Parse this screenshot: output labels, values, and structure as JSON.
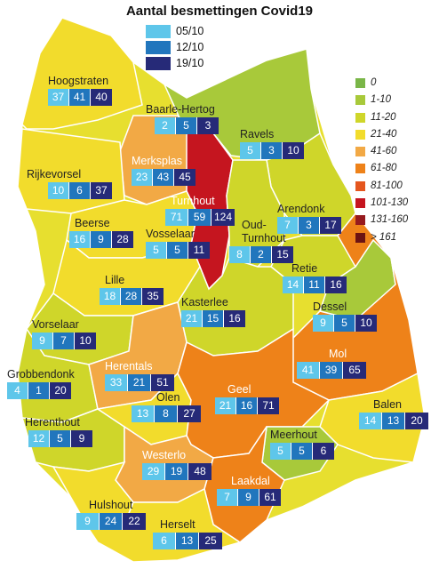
{
  "title": "Aantal besmettingen Covid19",
  "key": [
    {
      "label": "05/10",
      "color": "#5ec6ea"
    },
    {
      "label": "12/10",
      "color": "#2176bd"
    },
    {
      "label": "19/10",
      "color": "#262a78"
    }
  ],
  "scale": [
    {
      "label": "0",
      "color": "#7ab648"
    },
    {
      "label": "1-10",
      "color": "#a8c93a"
    },
    {
      "label": "11-20",
      "color": "#cfd62a"
    },
    {
      "label": "21-40",
      "color": "#f2dc2c"
    },
    {
      "label": "41-60",
      "color": "#f2a945"
    },
    {
      "label": "61-80",
      "color": "#ee8219"
    },
    {
      "label": "81-100",
      "color": "#e5561e"
    },
    {
      "label": "101-130",
      "color": "#c5151f"
    },
    {
      "label": "131-160",
      "color": "#961a1e"
    },
    {
      "label": "> 161",
      "color": "#6b1313"
    }
  ],
  "municipalities": [
    {
      "name": "Hoogstraten",
      "v": [
        "37",
        "41",
        "40"
      ]
    },
    {
      "name": "Baarle-Hertog",
      "v": [
        "2",
        "5",
        "3"
      ]
    },
    {
      "name": "Ravels",
      "v": [
        "5",
        "3",
        "10"
      ]
    },
    {
      "name": "Merksplas",
      "v": [
        "23",
        "43",
        "45"
      ]
    },
    {
      "name": "Rijkevorsel",
      "v": [
        "10",
        "6",
        "37"
      ]
    },
    {
      "name": "Turnhout",
      "v": [
        "71",
        "59",
        "124"
      ]
    },
    {
      "name": "Arendonk",
      "v": [
        "7",
        "3",
        "17"
      ]
    },
    {
      "name": "Beerse",
      "v": [
        "16",
        "9",
        "28"
      ]
    },
    {
      "name": "Vosselaar",
      "v": [
        "5",
        "5",
        "11"
      ]
    },
    {
      "name": "Oud-Turnhout",
      "v": [
        "8",
        "2",
        "15"
      ]
    },
    {
      "name": "Lille",
      "v": [
        "18",
        "28",
        "35"
      ]
    },
    {
      "name": "Retie",
      "v": [
        "14",
        "11",
        "16"
      ]
    },
    {
      "name": "Kasterlee",
      "v": [
        "21",
        "15",
        "16"
      ]
    },
    {
      "name": "Dessel",
      "v": [
        "9",
        "5",
        "10"
      ]
    },
    {
      "name": "Vorselaar",
      "v": [
        "9",
        "7",
        "10"
      ]
    },
    {
      "name": "Mol",
      "v": [
        "41",
        "39",
        "65"
      ]
    },
    {
      "name": "Herentals",
      "v": [
        "33",
        "21",
        "51"
      ]
    },
    {
      "name": "Grobbendonk",
      "v": [
        "4",
        "1",
        "20"
      ]
    },
    {
      "name": "Geel",
      "v": [
        "21",
        "16",
        "71"
      ]
    },
    {
      "name": "Olen",
      "v": [
        "13",
        "8",
        "27"
      ]
    },
    {
      "name": "Balen",
      "v": [
        "14",
        "13",
        "20"
      ]
    },
    {
      "name": "Herenthout",
      "v": [
        "12",
        "5",
        "9"
      ]
    },
    {
      "name": "Meerhout",
      "v": [
        "5",
        "5",
        "6"
      ]
    },
    {
      "name": "Westerlo",
      "v": [
        "29",
        "19",
        "48"
      ]
    },
    {
      "name": "Laakdal",
      "v": [
        "7",
        "9",
        "61"
      ]
    },
    {
      "name": "Hulshout",
      "v": [
        "9",
        "24",
        "22"
      ]
    },
    {
      "name": "Herselt",
      "v": [
        "6",
        "13",
        "25"
      ]
    }
  ]
}
